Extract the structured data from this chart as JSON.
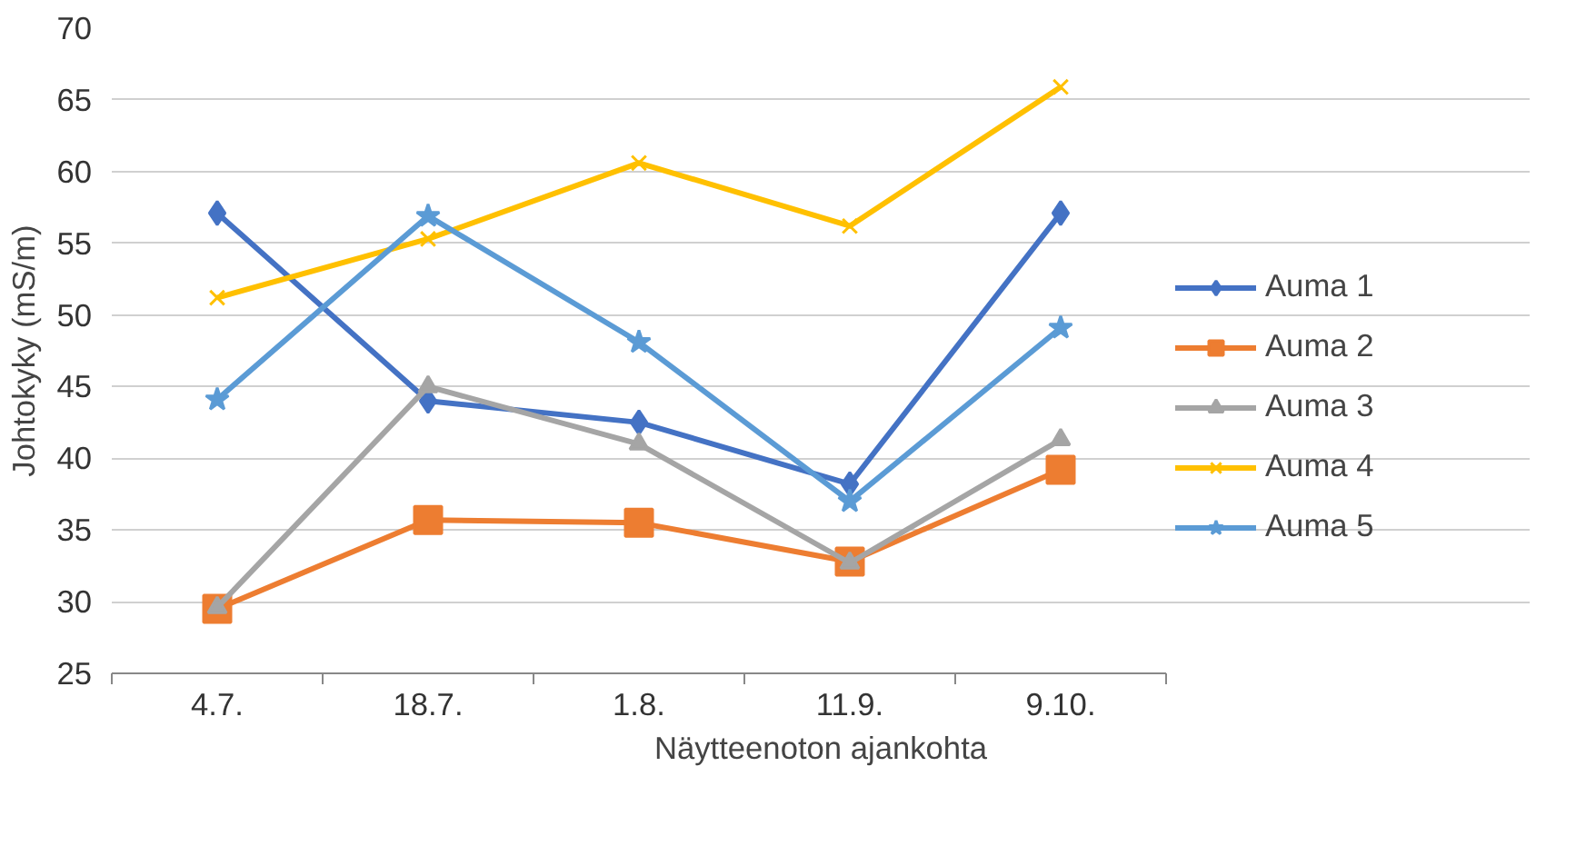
{
  "chart_data": {
    "type": "line",
    "xlabel": "Näytteenoton ajankohta",
    "ylabel": "Johtokyky (mS/m)",
    "categories": [
      "4.7.",
      "18.7.",
      "1.8.",
      "11.9.",
      "9.10."
    ],
    "ylim": [
      25,
      70
    ],
    "yticks": [
      25,
      30,
      35,
      40,
      45,
      50,
      55,
      60,
      65,
      70
    ],
    "grid": "y",
    "legend": "right",
    "series": [
      {
        "name": "Auma 1",
        "color": "#4472c4",
        "marker": "diamond",
        "values": [
          57.1,
          44.0,
          42.5,
          38.2,
          57.1
        ]
      },
      {
        "name": "Auma 2",
        "color": "#ed7d31",
        "marker": "square",
        "values": [
          29.5,
          35.7,
          35.5,
          32.8,
          39.2
        ]
      },
      {
        "name": "Auma 3",
        "color": "#a5a5a5",
        "marker": "triangle",
        "values": [
          29.6,
          45.0,
          41.0,
          32.7,
          41.3
        ]
      },
      {
        "name": "Auma 4",
        "color": "#ffc000",
        "marker": "cross",
        "values": [
          51.2,
          55.3,
          60.6,
          56.2,
          65.9
        ]
      },
      {
        "name": "Auma 5",
        "color": "#5b9bd5",
        "marker": "star",
        "values": [
          44.1,
          56.9,
          48.1,
          37.0,
          49.1
        ]
      }
    ]
  }
}
